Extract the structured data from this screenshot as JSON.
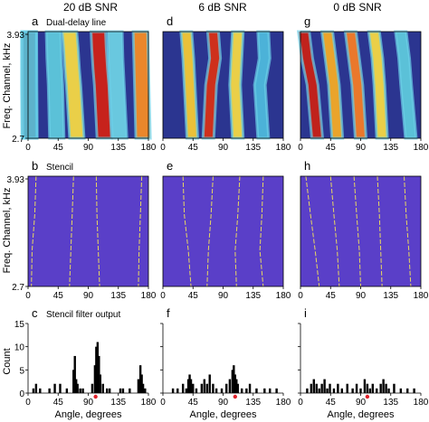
{
  "columns": [
    {
      "id": "col1",
      "title": "20 dB SNR"
    },
    {
      "id": "col2",
      "title": "6 dB SNR"
    },
    {
      "id": "col3",
      "title": "0 dB SNR"
    }
  ],
  "row_labels": {
    "row1": "Dual-delay line",
    "row2": "Stencil",
    "row3": "Stencil filter output"
  },
  "panel_letters": [
    "a",
    "d",
    "g",
    "b",
    "e",
    "h",
    "c",
    "f",
    "i"
  ],
  "y_label_top": "Freq. Channel, kHz",
  "y_label_bottom": "Count",
  "x_label": "Angle, degrees",
  "colors": {
    "background_blue": "#2b3590",
    "stencil_purple": "#5a3fc8",
    "stencil_line": "#e8d860",
    "bar": "#000000",
    "marker": "#e0202a"
  },
  "chart_data": [
    {
      "type": "heatmap",
      "panel": "a",
      "title": "20 dB SNR",
      "ylabel": "Freq. Channel, kHz",
      "xlim": [
        0,
        180
      ],
      "x_ticks": [
        0,
        45,
        90,
        135,
        180
      ],
      "y_ticks": [
        "3.93",
        "2.7"
      ],
      "bands": [
        {
          "xs": [
            [
              0,
              1.2
            ],
            [
              0.5,
              1.2
            ],
            [
              1,
              1.2
            ],
            [
              2,
              1.8
            ]
          ],
          "c": "#ffb020"
        },
        {
          "xs": [
            [
              0,
              1.4
            ],
            [
              0.5,
              1.4
            ],
            [
              1,
              1.4
            ],
            [
              2,
              2.0
            ]
          ],
          "c": "#d03010"
        },
        {
          "xs": [
            [
              0,
              2.0
            ],
            [
              0.5,
              2.2
            ],
            [
              1,
              2.4
            ],
            [
              2,
              3.0
            ]
          ],
          "c": "#50c0e0"
        },
        {
          "xs": [
            [
              0,
              38
            ],
            [
              0.5,
              39
            ],
            [
              1,
              41
            ],
            [
              2,
              43
            ]
          ],
          "c": "#60d0e0"
        },
        {
          "xs": [
            [
              0,
              62
            ],
            [
              0.3,
              64
            ],
            [
              0.7,
              66
            ],
            [
              1,
              68
            ],
            [
              2,
              73
            ]
          ],
          "c": "#ffe040"
        },
        {
          "xs": [
            [
              0,
              105
            ],
            [
              0.3,
              106
            ],
            [
              0.7,
              108
            ],
            [
              1,
              110
            ],
            [
              2,
              114
            ]
          ],
          "c": "#d82010"
        },
        {
          "xs": [
            [
              0,
              130
            ],
            [
              0.5,
              131
            ],
            [
              1,
              133
            ],
            [
              2,
              137
            ]
          ],
          "c": "#70d8e8"
        },
        {
          "xs": [
            [
              0,
              168
            ],
            [
              0.5,
              169
            ],
            [
              1,
              170
            ],
            [
              2,
              172
            ]
          ],
          "c": "#ff9020"
        }
      ]
    },
    {
      "type": "heatmap",
      "panel": "d",
      "title": "6 dB SNR",
      "xlim": [
        0,
        180
      ],
      "x_ticks": [
        0,
        45,
        90,
        135,
        180
      ],
      "bands": [
        {
          "xs": [
            [
              0,
              35
            ],
            [
              0.5,
              38
            ],
            [
              1,
              40
            ],
            [
              2,
              44
            ]
          ],
          "c": "#ffd030"
        },
        {
          "xs": [
            [
              0,
              75
            ],
            [
              0.5,
              78
            ],
            [
              1,
              72
            ],
            [
              2,
              68
            ]
          ],
          "c": "#e03010"
        },
        {
          "xs": [
            [
              0,
              112
            ],
            [
              0.5,
              110
            ],
            [
              1,
              108
            ],
            [
              2,
              112
            ]
          ],
          "c": "#ffe040"
        },
        {
          "xs": [
            [
              0,
              150
            ],
            [
              0.5,
              152
            ],
            [
              1,
              145
            ],
            [
              2,
              150
            ]
          ],
          "c": "#50c0e0"
        }
      ]
    },
    {
      "type": "heatmap",
      "panel": "g",
      "title": "0 dB SNR",
      "xlim": [
        0,
        180
      ],
      "x_ticks": [
        0,
        45,
        90,
        135,
        180
      ],
      "bands": [
        {
          "xs": [
            [
              0,
              5
            ],
            [
              0.5,
              10
            ],
            [
              1,
              18
            ],
            [
              2,
              25
            ]
          ],
          "c": "#d02010"
        },
        {
          "xs": [
            [
              0,
              40
            ],
            [
              0.5,
              45
            ],
            [
              1,
              50
            ],
            [
              2,
              55
            ]
          ],
          "c": "#ffb020"
        },
        {
          "xs": [
            [
              0,
              75
            ],
            [
              0.5,
              80
            ],
            [
              1,
              85
            ],
            [
              2,
              90
            ]
          ],
          "c": "#ff8020"
        },
        {
          "xs": [
            [
              0,
              110
            ],
            [
              0.5,
              115
            ],
            [
              1,
              118
            ],
            [
              2,
              122
            ]
          ],
          "c": "#ffe040"
        },
        {
          "xs": [
            [
              0,
              150
            ],
            [
              0.5,
              155
            ],
            [
              1,
              158
            ],
            [
              2,
              165
            ]
          ],
          "c": "#60d0e0"
        }
      ]
    },
    {
      "type": "line",
      "panel": "b",
      "ylabel": "Freq. Channel, kHz",
      "xlim": [
        0,
        180
      ],
      "x_ticks": [
        0,
        45,
        90,
        135,
        180
      ],
      "y_ticks": [
        "3.93",
        "2.7"
      ],
      "series": [
        {
          "values": [
            [
              12,
              3.93
            ],
            [
              10,
              3.5
            ],
            [
              6,
              3.1
            ],
            [
              5,
              2.7
            ]
          ]
        },
        {
          "values": [
            [
              68,
              3.93
            ],
            [
              66,
              3.5
            ],
            [
              64,
              3.1
            ],
            [
              62,
              2.7
            ]
          ]
        },
        {
          "values": [
            [
              102,
              3.93
            ],
            [
              103,
              3.5
            ],
            [
              105,
              3.1
            ],
            [
              107,
              2.7
            ]
          ]
        },
        {
          "values": [
            [
              170,
              3.93
            ],
            [
              168,
              3.5
            ],
            [
              166,
              3.1
            ],
            [
              165,
              2.7
            ]
          ]
        }
      ]
    },
    {
      "type": "line",
      "panel": "e",
      "xlim": [
        0,
        180
      ],
      "x_ticks": [
        0,
        45,
        90,
        135,
        180
      ],
      "series": [
        {
          "values": [
            [
              30,
              3.93
            ],
            [
              32,
              3.5
            ],
            [
              38,
              3.1
            ],
            [
              42,
              2.7
            ]
          ]
        },
        {
          "values": [
            [
              75,
              3.93
            ],
            [
              72,
              3.5
            ],
            [
              68,
              3.1
            ],
            [
              66,
              2.7
            ]
          ]
        },
        {
          "values": [
            [
              115,
              3.93
            ],
            [
              112,
              3.5
            ],
            [
              108,
              3.1
            ],
            [
              110,
              2.7
            ]
          ]
        },
        {
          "values": [
            [
              150,
              3.93
            ],
            [
              148,
              3.5
            ],
            [
              145,
              3.1
            ],
            [
              150,
              2.7
            ]
          ]
        }
      ]
    },
    {
      "type": "line",
      "panel": "h",
      "xlim": [
        0,
        180
      ],
      "x_ticks": [
        0,
        45,
        90,
        135,
        180
      ],
      "series": [
        {
          "values": [
            [
              8,
              3.93
            ],
            [
              15,
              3.5
            ],
            [
              22,
              3.1
            ],
            [
              28,
              2.7
            ]
          ]
        },
        {
          "values": [
            [
              45,
              3.93
            ],
            [
              50,
              3.5
            ],
            [
              55,
              3.1
            ],
            [
              58,
              2.7
            ]
          ]
        },
        {
          "values": [
            [
              80,
              3.93
            ],
            [
              84,
              3.5
            ],
            [
              88,
              3.1
            ],
            [
              90,
              2.7
            ]
          ]
        },
        {
          "values": [
            [
              115,
              3.93
            ],
            [
              118,
              3.5
            ],
            [
              120,
              3.1
            ],
            [
              122,
              2.7
            ]
          ]
        },
        {
          "values": [
            [
              155,
              3.93
            ],
            [
              158,
              3.5
            ],
            [
              162,
              3.1
            ],
            [
              165,
              2.7
            ]
          ]
        }
      ]
    },
    {
      "type": "bar",
      "panel": "c",
      "xlabel": "Angle, degrees",
      "ylabel": "Count",
      "xlim": [
        0,
        180
      ],
      "ylim": [
        0,
        15
      ],
      "x_ticks": [
        0,
        45,
        90,
        135,
        180
      ],
      "y_ticks": [
        0,
        5,
        10,
        15
      ],
      "x": [
        8,
        12,
        18,
        32,
        40,
        48,
        58,
        68,
        70,
        72,
        74,
        78,
        82,
        96,
        100,
        102,
        104,
        106,
        108,
        112,
        118,
        122,
        138,
        142,
        152,
        165,
        168,
        170,
        172,
        175
      ],
      "values": [
        1,
        2,
        1,
        1,
        2,
        2,
        1,
        5,
        8,
        3,
        2,
        1,
        1,
        2,
        6,
        10,
        11,
        8,
        4,
        2,
        1,
        1,
        1,
        1,
        1,
        3,
        6,
        4,
        2,
        1
      ],
      "marker_x": 101
    },
    {
      "type": "bar",
      "panel": "f",
      "xlabel": "Angle, degrees",
      "xlim": [
        0,
        180
      ],
      "ylim": [
        0,
        15
      ],
      "x_ticks": [
        0,
        45,
        90,
        135,
        180
      ],
      "x": [
        15,
        22,
        30,
        35,
        38,
        40,
        42,
        45,
        50,
        58,
        62,
        66,
        70,
        75,
        80,
        88,
        95,
        100,
        104,
        106,
        108,
        110,
        112,
        118,
        125,
        130,
        140,
        152,
        160,
        170
      ],
      "values": [
        1,
        1,
        2,
        1,
        3,
        4,
        3,
        2,
        1,
        2,
        3,
        2,
        4,
        2,
        1,
        1,
        2,
        3,
        5,
        6,
        4,
        3,
        2,
        1,
        1,
        2,
        1,
        1,
        1,
        1
      ],
      "marker_x": 108
    },
    {
      "type": "bar",
      "panel": "i",
      "xlabel": "Angle, degrees",
      "xlim": [
        0,
        180
      ],
      "ylim": [
        0,
        15
      ],
      "x_ticks": [
        0,
        45,
        90,
        135,
        180
      ],
      "x": [
        10,
        16,
        20,
        24,
        28,
        32,
        36,
        40,
        44,
        50,
        56,
        62,
        70,
        78,
        84,
        90,
        96,
        100,
        104,
        108,
        114,
        120,
        124,
        128,
        132,
        140,
        150,
        160,
        170
      ],
      "values": [
        1,
        2,
        3,
        2,
        1,
        2,
        3,
        1,
        2,
        1,
        2,
        1,
        2,
        1,
        2,
        1,
        3,
        2,
        1,
        2,
        1,
        2,
        3,
        2,
        1,
        2,
        1,
        1,
        1
      ],
      "marker_x": 100
    }
  ]
}
